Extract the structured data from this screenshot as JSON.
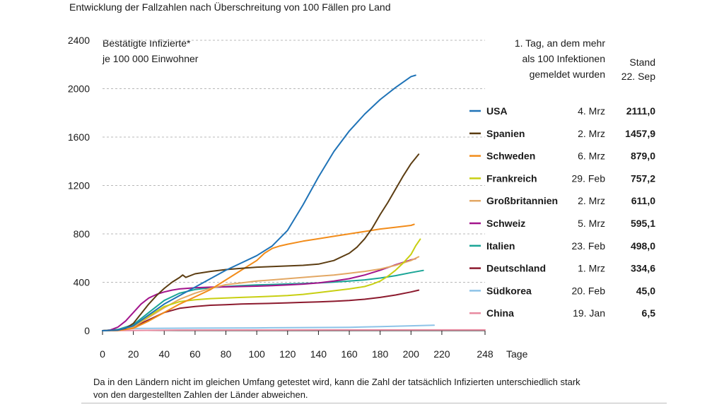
{
  "chart_data": {
    "type": "line",
    "title": "Entwicklung der Fallzahlen nach Überschreitung von 100 Fällen pro Land",
    "ylabel_lines": [
      "Bestätigte Infizierte*",
      "je 100 000 Einwohner"
    ],
    "xlabel": "Tage",
    "xlim": [
      0,
      248
    ],
    "ylim": [
      0,
      2400
    ],
    "x_ticks": [
      0,
      20,
      40,
      60,
      80,
      100,
      120,
      140,
      160,
      180,
      200,
      220,
      248
    ],
    "y_ticks": [
      0,
      400,
      800,
      1200,
      1600,
      2000,
      2400
    ],
    "y_tick_labels": [
      "0",
      "400",
      "800",
      "1200",
      "1600",
      "2000",
      "2400"
    ],
    "grid": "horizontal dashed",
    "legend_header_first_day": [
      "1. Tag, an dem mehr",
      "als 100 Infektionen",
      "gemeldet wurden"
    ],
    "legend_header_stand": [
      "Stand",
      "22. Sep"
    ],
    "series": [
      {
        "name": "USA",
        "first_day": "4. Mrz",
        "latest": "2111,0",
        "color": "#1f73b7",
        "x": [
          0,
          10,
          20,
          30,
          40,
          50,
          60,
          70,
          80,
          90,
          100,
          110,
          120,
          130,
          140,
          150,
          160,
          170,
          180,
          190,
          200,
          203
        ],
        "y": [
          0,
          5,
          40,
          130,
          220,
          290,
          360,
          430,
          500,
          560,
          620,
          700,
          830,
          1040,
          1270,
          1480,
          1650,
          1790,
          1910,
          2010,
          2100,
          2111
        ]
      },
      {
        "name": "Spanien",
        "first_day": "2. Mrz",
        "latest": "1457,9",
        "color": "#5c3d12",
        "x": [
          0,
          10,
          15,
          20,
          25,
          30,
          35,
          40,
          45,
          50,
          52,
          54,
          60,
          70,
          80,
          90,
          100,
          110,
          120,
          130,
          140,
          150,
          160,
          165,
          170,
          175,
          180,
          185,
          190,
          195,
          200,
          205
        ],
        "y": [
          0,
          5,
          20,
          60,
          140,
          220,
          290,
          350,
          400,
          440,
          460,
          440,
          470,
          490,
          505,
          515,
          525,
          530,
          535,
          540,
          550,
          580,
          640,
          690,
          760,
          850,
          960,
          1060,
          1170,
          1280,
          1380,
          1458
        ]
      },
      {
        "name": "Schweden",
        "first_day": "6. Mrz",
        "latest": "879,0",
        "color": "#f28c1a",
        "x": [
          0,
          10,
          20,
          30,
          40,
          50,
          60,
          70,
          80,
          90,
          100,
          105,
          110,
          115,
          120,
          130,
          140,
          150,
          160,
          170,
          180,
          190,
          200,
          202
        ],
        "y": [
          0,
          2,
          20,
          80,
          150,
          220,
          280,
          340,
          420,
          500,
          580,
          640,
          680,
          700,
          715,
          740,
          760,
          780,
          800,
          820,
          840,
          855,
          870,
          879
        ]
      },
      {
        "name": "Frankreich",
        "first_day": "29. Feb",
        "latest": "757,2",
        "color": "#c8cf12",
        "x": [
          0,
          10,
          20,
          30,
          40,
          50,
          60,
          70,
          80,
          90,
          100,
          110,
          120,
          130,
          140,
          150,
          160,
          170,
          175,
          180,
          185,
          190,
          195,
          200,
          203,
          206
        ],
        "y": [
          0,
          5,
          40,
          120,
          200,
          240,
          255,
          265,
          270,
          275,
          280,
          285,
          290,
          300,
          315,
          330,
          345,
          365,
          385,
          410,
          450,
          500,
          560,
          630,
          700,
          757
        ]
      },
      {
        "name": "Großbritannien",
        "first_day": "2. Mrz",
        "latest": "611,0",
        "color": "#e3a864",
        "x": [
          0,
          10,
          20,
          30,
          40,
          50,
          60,
          70,
          80,
          90,
          100,
          110,
          120,
          130,
          140,
          150,
          160,
          170,
          180,
          190,
          200,
          205
        ],
        "y": [
          0,
          3,
          30,
          110,
          190,
          260,
          310,
          350,
          380,
          395,
          410,
          420,
          430,
          440,
          450,
          460,
          475,
          490,
          510,
          540,
          580,
          611
        ]
      },
      {
        "name": "Schweiz",
        "first_day": "5. Mrz",
        "latest": "595,1",
        "color": "#a3148c",
        "x": [
          0,
          5,
          10,
          15,
          20,
          25,
          30,
          35,
          40,
          45,
          50,
          60,
          70,
          80,
          90,
          100,
          110,
          120,
          130,
          140,
          150,
          160,
          170,
          180,
          190,
          200,
          203
        ],
        "y": [
          0,
          5,
          30,
          80,
          150,
          220,
          270,
          300,
          320,
          335,
          345,
          355,
          360,
          362,
          365,
          368,
          372,
          378,
          385,
          395,
          410,
          430,
          460,
          500,
          545,
          585,
          595
        ]
      },
      {
        "name": "Italien",
        "first_day": "23. Feb",
        "latest": "498,0",
        "color": "#1aa596",
        "x": [
          0,
          10,
          20,
          30,
          40,
          50,
          60,
          70,
          80,
          90,
          100,
          110,
          120,
          130,
          140,
          150,
          160,
          170,
          180,
          190,
          200,
          208
        ],
        "y": [
          0,
          10,
          50,
          150,
          250,
          310,
          340,
          355,
          365,
          372,
          378,
          382,
          386,
          390,
          395,
          402,
          410,
          420,
          435,
          455,
          480,
          498
        ]
      },
      {
        "name": "Deutschland",
        "first_day": "1. Mrz",
        "latest": "334,6",
        "color": "#8c1a2e",
        "x": [
          0,
          10,
          20,
          30,
          40,
          50,
          60,
          70,
          80,
          90,
          100,
          110,
          120,
          130,
          140,
          150,
          160,
          170,
          180,
          190,
          200,
          205
        ],
        "y": [
          0,
          3,
          30,
          90,
          150,
          185,
          200,
          210,
          215,
          220,
          223,
          226,
          230,
          234,
          238,
          243,
          250,
          260,
          275,
          295,
          320,
          335
        ]
      },
      {
        "name": "Südkorea",
        "first_day": "20. Feb",
        "latest": "45,0",
        "color": "#8dc3e8",
        "x": [
          0,
          20,
          40,
          60,
          80,
          100,
          120,
          140,
          160,
          180,
          200,
          215
        ],
        "y": [
          0,
          18,
          20,
          21,
          22,
          23,
          25,
          26,
          28,
          33,
          40,
          45
        ]
      },
      {
        "name": "China",
        "first_day": "19. Jan",
        "latest": "6,5",
        "color": "#e88aa0",
        "x": [
          0,
          50,
          100,
          150,
          200,
          248
        ],
        "y": [
          0,
          5,
          6,
          6.2,
          6.4,
          6.5
        ]
      }
    ]
  },
  "footnote": "Da in den Ländern nicht im gleichen Umfang getestet wird, kann die Zahl der tatsächlich Infizierten unterschiedlich stark von den dargestellten Zahlen der Länder abweichen."
}
